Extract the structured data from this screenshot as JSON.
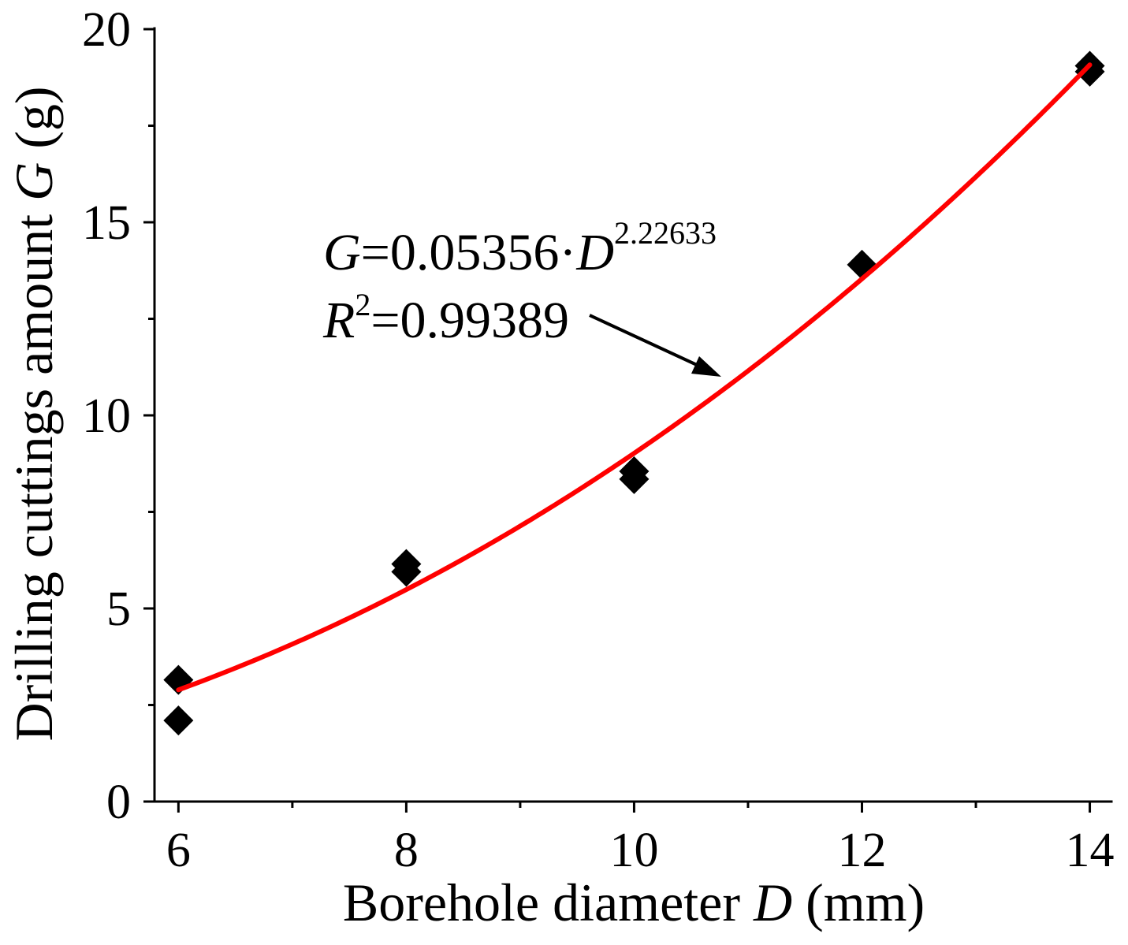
{
  "chart_data": {
    "type": "scatter",
    "title": "",
    "xlabel": {
      "text": "Borehole diameter ",
      "var": "D",
      "unit": " (mm)"
    },
    "ylabel": {
      "text": "Drilling cuttings amount ",
      "var": "G",
      "unit": " (g)"
    },
    "xlim": [
      5.79,
      14.19
    ],
    "ylim": [
      0,
      20
    ],
    "xticks": [
      6,
      8,
      10,
      12,
      14
    ],
    "x_minor_ticks": [
      7,
      9,
      11,
      13
    ],
    "yticks": [
      0,
      5,
      10,
      15,
      20
    ],
    "y_minor_ticks": [
      2.5,
      7.5,
      12.5,
      17.5
    ],
    "grid": false,
    "legend": "none",
    "series": [
      {
        "marker": "diamond",
        "color": "#000000",
        "points": [
          [
            6,
            3.15
          ],
          [
            6,
            2.1
          ],
          [
            8,
            6.15
          ],
          [
            8,
            5.95
          ],
          [
            10,
            8.55
          ],
          [
            10,
            8.35
          ],
          [
            12,
            13.9
          ],
          [
            14,
            19.05
          ],
          [
            14,
            18.9
          ]
        ]
      }
    ],
    "fit": {
      "model": "power",
      "a": 0.05356,
      "b": 2.22633,
      "x_range": [
        6,
        14
      ],
      "color": "#ff0000"
    },
    "annotation": {
      "equation": {
        "lhs": "G",
        "rhs": "=0.05356·",
        "var": "D",
        "exponent": "2.22633"
      },
      "r_squared": {
        "symbol": "R",
        "sup": "2",
        "value": "=0.99389"
      }
    }
  }
}
